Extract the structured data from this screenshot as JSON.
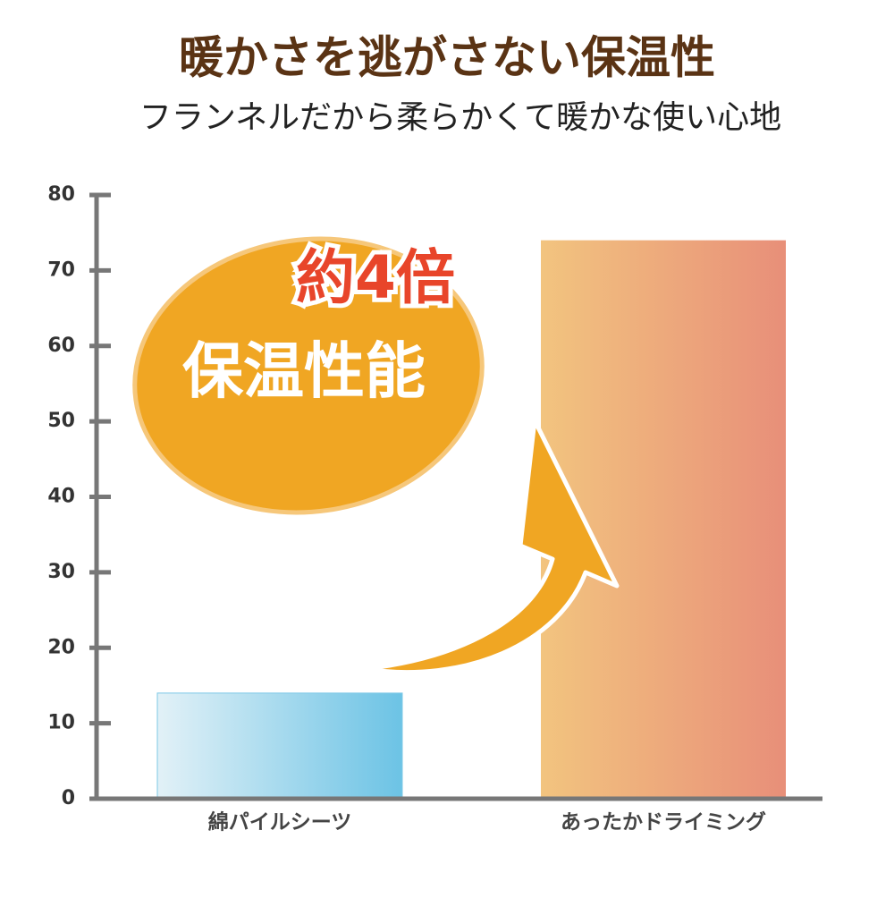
{
  "chart_data": {
    "type": "bar",
    "title": "暖かさを逃がさない保温性",
    "subtitle": "フランネルだから柔らかくて暖かな使い心地",
    "annotations": [
      "約4倍",
      "保温性能"
    ],
    "categories": [
      "綿パイルシーツ",
      "あったかドライミング"
    ],
    "values": [
      14,
      74
    ],
    "colors": [
      [
        "#e2f1f7",
        "#6cc3e5"
      ],
      [
        "#f2c47f",
        "#e88f79"
      ]
    ],
    "ylim": [
      0,
      80
    ],
    "yticks": [
      0,
      10,
      20,
      30,
      40,
      50,
      60,
      70,
      80
    ]
  }
}
